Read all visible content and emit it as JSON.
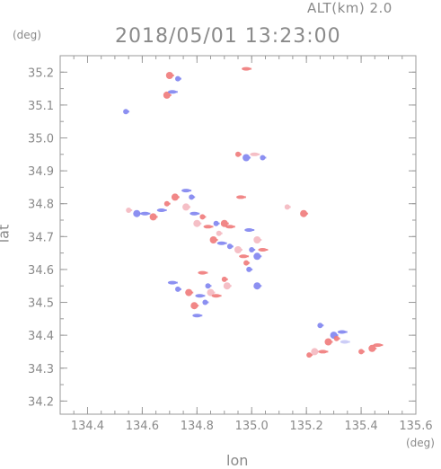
{
  "header": {
    "altitude_label": "ALT(km)  2.0",
    "timestamp": "2018/05/01 13:23:00"
  },
  "axes": {
    "x_unit": "(deg)",
    "y_unit": "(deg)",
    "x_label": "lon",
    "y_label": "lat"
  },
  "colors": {
    "frame": "#9a9a9a",
    "tick_text": "#8a8a8a",
    "echo_blue": "#7f84f0",
    "echo_red": "#f07a7a",
    "echo_pink": "#f4b8c0",
    "echo_light_blue": "#c6c8f6"
  },
  "chart_data": {
    "type": "scatter",
    "xlim": [
      134.3,
      135.6
    ],
    "ylim": [
      34.16,
      35.25
    ],
    "x_ticks": [
      134.4,
      134.6,
      134.8,
      135.0,
      135.2,
      135.4,
      135.6
    ],
    "x_tick_labels": [
      "134.4",
      "134.6",
      "134.8",
      "135.0",
      "135.2",
      "135.4",
      "135.6"
    ],
    "y_ticks": [
      34.2,
      34.3,
      34.4,
      34.5,
      34.6,
      34.7,
      34.8,
      34.9,
      35.0,
      35.1,
      35.2
    ],
    "y_tick_labels": [
      "34.2",
      "34.3",
      "34.4",
      "34.5",
      "34.6",
      "34.7",
      "34.8",
      "34.9",
      "35.0",
      "35.1",
      "35.2"
    ],
    "grid": false,
    "echoes": [
      {
        "lon": 134.54,
        "lat": 35.08,
        "color": "blue"
      },
      {
        "lon": 134.69,
        "lat": 35.13,
        "color": "red"
      },
      {
        "lon": 134.71,
        "lat": 35.14,
        "color": "blue"
      },
      {
        "lon": 134.73,
        "lat": 35.18,
        "color": "blue"
      },
      {
        "lon": 134.7,
        "lat": 35.19,
        "color": "red"
      },
      {
        "lon": 134.98,
        "lat": 35.21,
        "color": "red"
      },
      {
        "lon": 134.95,
        "lat": 34.95,
        "color": "red"
      },
      {
        "lon": 134.98,
        "lat": 34.94,
        "color": "blue"
      },
      {
        "lon": 135.01,
        "lat": 34.95,
        "color": "pink"
      },
      {
        "lon": 135.04,
        "lat": 34.94,
        "color": "blue"
      },
      {
        "lon": 134.58,
        "lat": 34.77,
        "color": "blue"
      },
      {
        "lon": 134.61,
        "lat": 34.77,
        "color": "blue"
      },
      {
        "lon": 134.55,
        "lat": 34.78,
        "color": "pink"
      },
      {
        "lon": 134.64,
        "lat": 34.76,
        "color": "red"
      },
      {
        "lon": 134.67,
        "lat": 34.78,
        "color": "blue"
      },
      {
        "lon": 134.69,
        "lat": 34.8,
        "color": "red"
      },
      {
        "lon": 134.72,
        "lat": 34.82,
        "color": "red"
      },
      {
        "lon": 134.76,
        "lat": 34.84,
        "color": "blue"
      },
      {
        "lon": 134.78,
        "lat": 34.82,
        "color": "blue"
      },
      {
        "lon": 134.76,
        "lat": 34.79,
        "color": "pink"
      },
      {
        "lon": 134.79,
        "lat": 34.77,
        "color": "blue"
      },
      {
        "lon": 134.82,
        "lat": 34.76,
        "color": "red"
      },
      {
        "lon": 134.8,
        "lat": 34.74,
        "color": "pink"
      },
      {
        "lon": 134.84,
        "lat": 34.73,
        "color": "red"
      },
      {
        "lon": 134.87,
        "lat": 34.74,
        "color": "blue"
      },
      {
        "lon": 134.9,
        "lat": 34.74,
        "color": "red"
      },
      {
        "lon": 134.92,
        "lat": 34.73,
        "color": "red"
      },
      {
        "lon": 134.88,
        "lat": 34.71,
        "color": "pink"
      },
      {
        "lon": 134.86,
        "lat": 34.69,
        "color": "red"
      },
      {
        "lon": 134.89,
        "lat": 34.68,
        "color": "blue"
      },
      {
        "lon": 134.92,
        "lat": 34.67,
        "color": "blue"
      },
      {
        "lon": 134.95,
        "lat": 34.66,
        "color": "pink"
      },
      {
        "lon": 134.97,
        "lat": 34.64,
        "color": "red"
      },
      {
        "lon": 135.0,
        "lat": 34.66,
        "color": "blue"
      },
      {
        "lon": 135.02,
        "lat": 34.69,
        "color": "pink"
      },
      {
        "lon": 134.99,
        "lat": 34.72,
        "color": "blue"
      },
      {
        "lon": 134.98,
        "lat": 34.62,
        "color": "red"
      },
      {
        "lon": 135.02,
        "lat": 34.64,
        "color": "blue"
      },
      {
        "lon": 135.04,
        "lat": 34.66,
        "color": "red"
      },
      {
        "lon": 134.99,
        "lat": 34.6,
        "color": "blue"
      },
      {
        "lon": 135.02,
        "lat": 34.55,
        "color": "blue"
      },
      {
        "lon": 134.96,
        "lat": 34.82,
        "color": "red"
      },
      {
        "lon": 135.13,
        "lat": 34.79,
        "color": "pink"
      },
      {
        "lon": 135.19,
        "lat": 34.77,
        "color": "red"
      },
      {
        "lon": 134.71,
        "lat": 34.56,
        "color": "blue"
      },
      {
        "lon": 134.73,
        "lat": 34.54,
        "color": "blue"
      },
      {
        "lon": 134.77,
        "lat": 34.53,
        "color": "red"
      },
      {
        "lon": 134.81,
        "lat": 34.52,
        "color": "blue"
      },
      {
        "lon": 134.83,
        "lat": 34.5,
        "color": "blue"
      },
      {
        "lon": 134.85,
        "lat": 34.53,
        "color": "pink"
      },
      {
        "lon": 134.87,
        "lat": 34.52,
        "color": "red"
      },
      {
        "lon": 134.84,
        "lat": 34.55,
        "color": "blue"
      },
      {
        "lon": 134.79,
        "lat": 34.49,
        "color": "red"
      },
      {
        "lon": 134.8,
        "lat": 34.46,
        "color": "blue"
      },
      {
        "lon": 134.9,
        "lat": 34.57,
        "color": "red"
      },
      {
        "lon": 134.91,
        "lat": 34.55,
        "color": "pink"
      },
      {
        "lon": 134.82,
        "lat": 34.59,
        "color": "red"
      },
      {
        "lon": 135.25,
        "lat": 34.43,
        "color": "blue"
      },
      {
        "lon": 135.3,
        "lat": 34.4,
        "color": "blue"
      },
      {
        "lon": 135.33,
        "lat": 34.41,
        "color": "blue"
      },
      {
        "lon": 135.31,
        "lat": 34.39,
        "color": "red"
      },
      {
        "lon": 135.28,
        "lat": 34.38,
        "color": "red"
      },
      {
        "lon": 135.34,
        "lat": 34.38,
        "color": "light-blue"
      },
      {
        "lon": 135.21,
        "lat": 34.34,
        "color": "red"
      },
      {
        "lon": 135.23,
        "lat": 34.35,
        "color": "pink"
      },
      {
        "lon": 135.26,
        "lat": 34.35,
        "color": "red"
      },
      {
        "lon": 135.4,
        "lat": 34.35,
        "color": "red"
      },
      {
        "lon": 135.44,
        "lat": 34.36,
        "color": "red"
      },
      {
        "lon": 135.46,
        "lat": 34.37,
        "color": "red"
      }
    ]
  }
}
